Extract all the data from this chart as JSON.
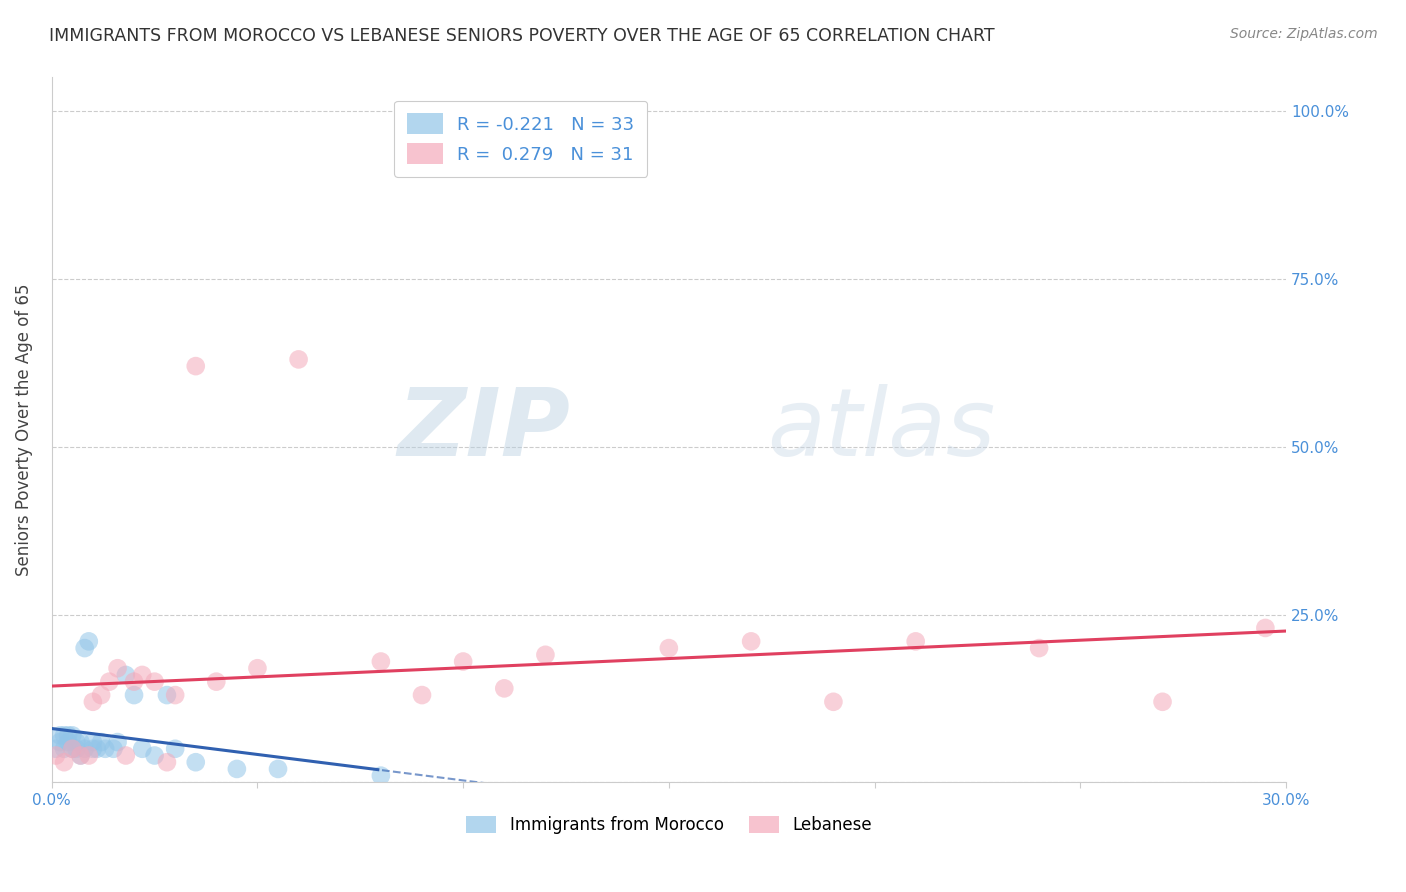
{
  "title": "IMMIGRANTS FROM MOROCCO VS LEBANESE SENIORS POVERTY OVER THE AGE OF 65 CORRELATION CHART",
  "source": "Source: ZipAtlas.com",
  "ylabel": "Seniors Poverty Over the Age of 65",
  "xlim": [
    0.0,
    0.3
  ],
  "ylim": [
    0.0,
    1.05
  ],
  "xticks": [
    0.0,
    0.05,
    0.1,
    0.15,
    0.2,
    0.25,
    0.3
  ],
  "xticklabels": [
    "0.0%",
    "",
    "",
    "",
    "",
    "",
    "30.0%"
  ],
  "yticks": [
    0.0,
    0.25,
    0.5,
    0.75,
    1.0
  ],
  "yticklabels": [
    "",
    "25.0%",
    "50.0%",
    "75.0%",
    "100.0%"
  ],
  "morocco_color": "#92C5E8",
  "lebanese_color": "#F4AABB",
  "morocco_R": -0.221,
  "morocco_N": 33,
  "lebanese_R": 0.279,
  "lebanese_N": 31,
  "legend_labels": [
    "Immigrants from Morocco",
    "Lebanese"
  ],
  "watermark_zip": "ZIP",
  "watermark_atlas": "atlas",
  "morocco_x": [
    0.001,
    0.002,
    0.002,
    0.003,
    0.003,
    0.004,
    0.004,
    0.005,
    0.005,
    0.006,
    0.006,
    0.007,
    0.007,
    0.008,
    0.008,
    0.009,
    0.01,
    0.01,
    0.011,
    0.012,
    0.013,
    0.015,
    0.016,
    0.018,
    0.02,
    0.022,
    0.025,
    0.028,
    0.03,
    0.035,
    0.045,
    0.055,
    0.08
  ],
  "morocco_y": [
    0.05,
    0.06,
    0.07,
    0.05,
    0.07,
    0.06,
    0.07,
    0.05,
    0.07,
    0.05,
    0.06,
    0.04,
    0.06,
    0.05,
    0.2,
    0.21,
    0.05,
    0.06,
    0.05,
    0.06,
    0.05,
    0.05,
    0.06,
    0.16,
    0.13,
    0.05,
    0.04,
    0.13,
    0.05,
    0.03,
    0.02,
    0.02,
    0.01
  ],
  "lebanese_x": [
    0.001,
    0.003,
    0.005,
    0.007,
    0.009,
    0.01,
    0.012,
    0.014,
    0.016,
    0.018,
    0.02,
    0.022,
    0.025,
    0.028,
    0.03,
    0.035,
    0.04,
    0.05,
    0.06,
    0.08,
    0.09,
    0.1,
    0.11,
    0.12,
    0.15,
    0.17,
    0.19,
    0.21,
    0.24,
    0.27,
    0.295
  ],
  "lebanese_y": [
    0.04,
    0.03,
    0.05,
    0.04,
    0.04,
    0.12,
    0.13,
    0.15,
    0.17,
    0.04,
    0.15,
    0.16,
    0.15,
    0.03,
    0.13,
    0.62,
    0.15,
    0.17,
    0.63,
    0.18,
    0.13,
    0.18,
    0.14,
    0.19,
    0.2,
    0.21,
    0.12,
    0.21,
    0.2,
    0.12,
    0.23
  ],
  "morocco_line_color": "#3060B0",
  "lebanese_line_color": "#E04060",
  "trend_line_alpha": 0.85
}
